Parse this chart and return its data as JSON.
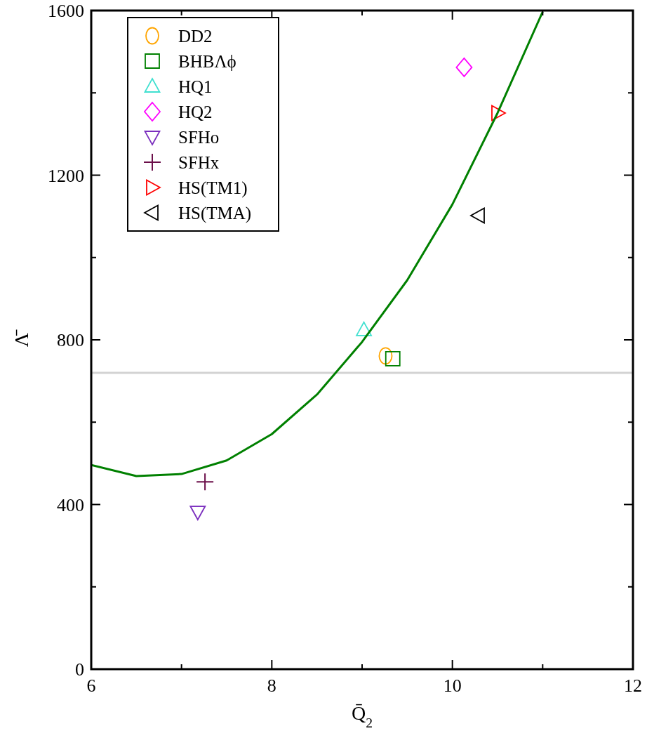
{
  "chart_data": {
    "type": "scatter",
    "xlabel": "Q̄$_{2}$",
    "ylabel": "Λ̄",
    "xlim": [
      6,
      12
    ],
    "xticks": [
      6,
      {
        "value": 7,
        "label": null
      },
      8,
      {
        "value": 9,
        "label": null
      },
      10,
      {
        "value": 11,
        "label": null
      },
      12
    ],
    "ylim": [
      0,
      1600
    ],
    "yticks": [
      0,
      {
        "value": 200,
        "label": null
      },
      400,
      {
        "value": 600,
        "label": null
      },
      800,
      {
        "value": 1000,
        "label": null
      },
      1200,
      {
        "value": 1400,
        "label": null
      },
      1600
    ],
    "grid": false,
    "legend": "top left",
    "ref_lines": [
      {
        "axis": "y",
        "value": 720,
        "color": "#d3d3d3"
      }
    ],
    "series": [
      {
        "name": "DD2",
        "color": "#ffa500",
        "marker": "circle",
        "x": [
          9.26
        ],
        "values": [
          761
        ]
      },
      {
        "name": "BHBΛϕ",
        "color": "#008000",
        "marker": "square",
        "x": [
          9.34
        ],
        "values": [
          754
        ]
      },
      {
        "name": "HQ1",
        "color": "#40e0d0",
        "marker": "triangle",
        "x": [
          9.02
        ],
        "values": [
          824
        ]
      },
      {
        "name": "HQ2",
        "color": "#ff00ff",
        "marker": "diamond",
        "x": [
          10.13
        ],
        "values": [
          1462
        ]
      },
      {
        "name": "SFHo",
        "color": "#7b2fbe",
        "marker": "triangle-down",
        "x": [
          7.18
        ],
        "values": [
          382
        ]
      },
      {
        "name": "SFHx",
        "color": "#6b0f4a",
        "marker": "cross",
        "x": [
          7.26
        ],
        "values": [
          455
        ]
      },
      {
        "name": "HS(TM1)",
        "color": "#ff0000",
        "marker": "triangle-right",
        "x": [
          10.5
        ],
        "values": [
          1351
        ]
      },
      {
        "name": "HS(TMA)",
        "color": "#000000",
        "marker": "triangle-left",
        "x": [
          10.29
        ],
        "values": [
          1102
        ]
      },
      {
        "type": "line",
        "color": "#008000",
        "line_style": "solid",
        "x": [
          6,
          6.5,
          7,
          7.5,
          8,
          8.5,
          9,
          9.5,
          10,
          10.5,
          11
        ],
        "values": [
          496,
          469,
          474,
          507,
          571,
          667,
          795,
          945,
          1129,
          1351,
          1597
        ]
      }
    ]
  }
}
